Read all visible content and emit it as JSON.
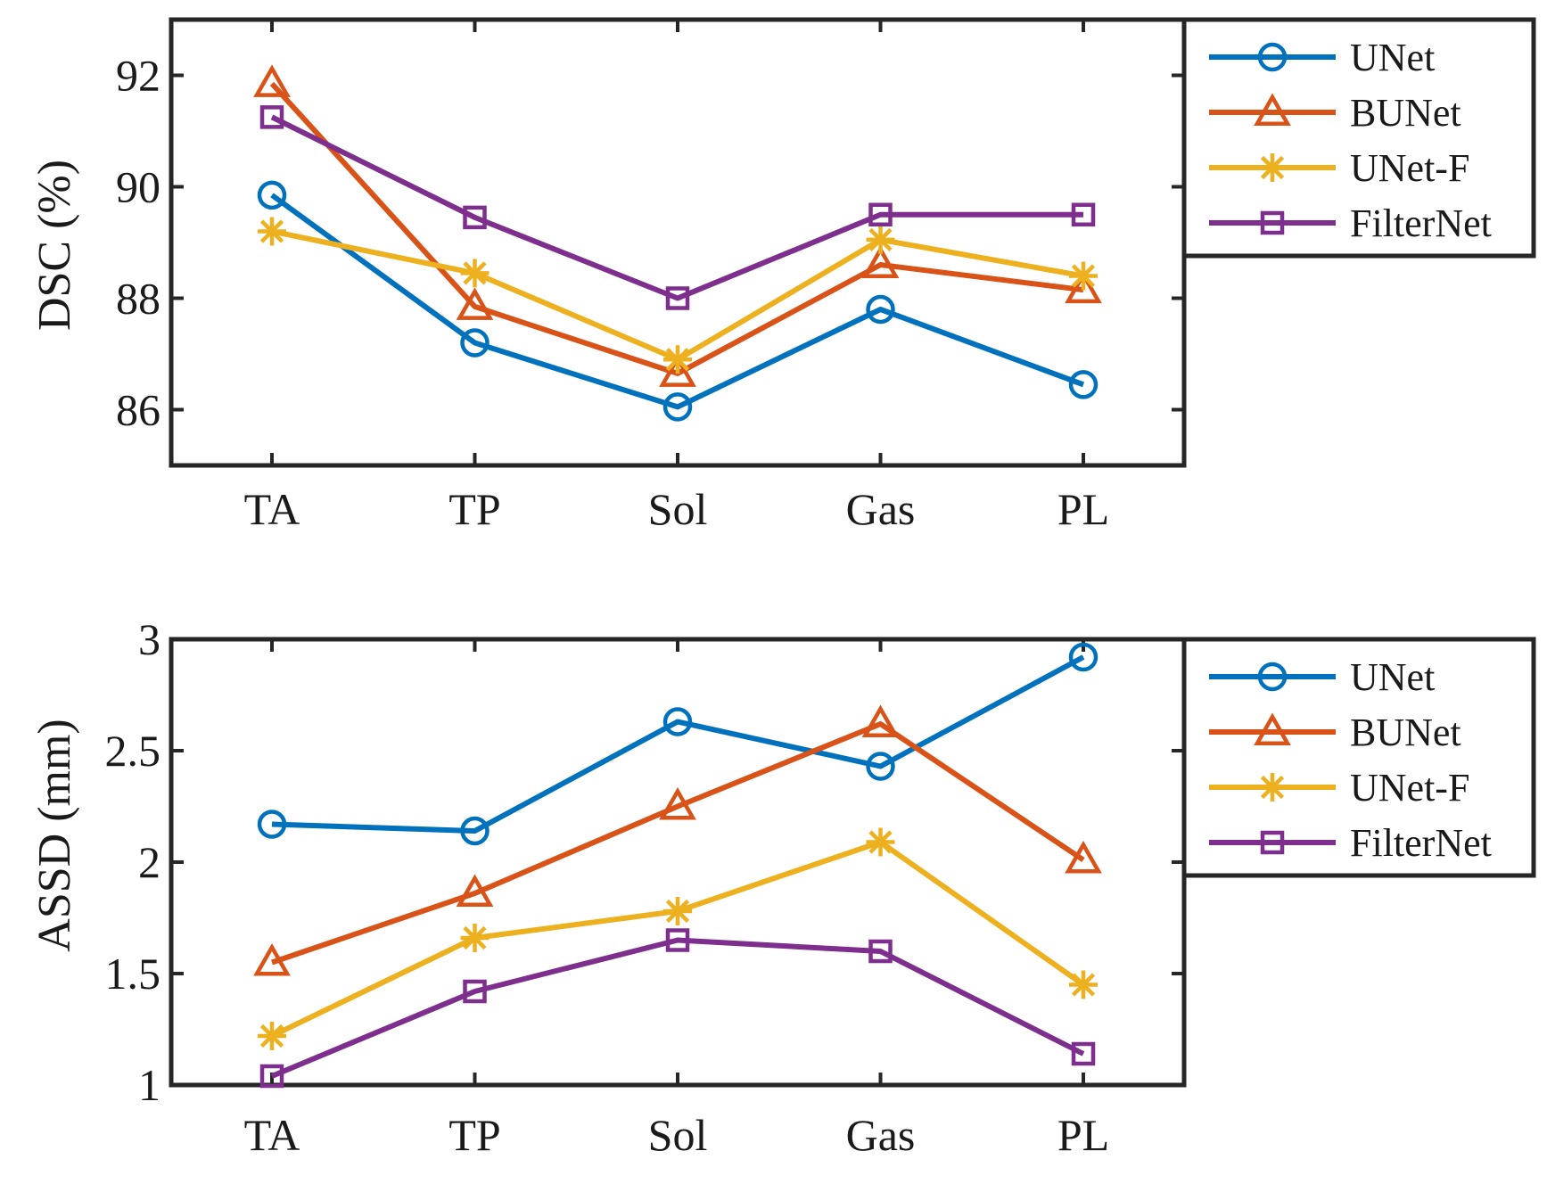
{
  "chart_data": [
    {
      "type": "line",
      "title": "",
      "xlabel": "",
      "ylabel": "DSC (%)",
      "categories": [
        "TA",
        "TP",
        "Sol",
        "Gas",
        "PL"
      ],
      "ylim": [
        85,
        93
      ],
      "yticks": [
        86,
        88,
        90,
        92
      ],
      "grid": false,
      "legend_position": "right",
      "series": [
        {
          "name": "UNet",
          "color": "#0072BD",
          "marker": "circle",
          "values": [
            89.85,
            87.2,
            86.05,
            87.8,
            86.45
          ]
        },
        {
          "name": "BUNet",
          "color": "#D95319",
          "marker": "triangle",
          "values": [
            91.85,
            87.85,
            86.65,
            88.6,
            88.15
          ]
        },
        {
          "name": "UNet-F",
          "color": "#EDB120",
          "marker": "star",
          "values": [
            89.2,
            88.45,
            86.9,
            89.05,
            88.4
          ]
        },
        {
          "name": "FilterNet",
          "color": "#7E2F8E",
          "marker": "square",
          "values": [
            91.25,
            89.45,
            88.0,
            89.5,
            89.5
          ]
        }
      ]
    },
    {
      "type": "line",
      "title": "",
      "xlabel": "",
      "ylabel": "ASSD (mm)",
      "categories": [
        "TA",
        "TP",
        "Sol",
        "Gas",
        "PL"
      ],
      "ylim": [
        1,
        3
      ],
      "yticks": [
        1,
        1.5,
        2,
        2.5,
        3
      ],
      "grid": false,
      "legend_position": "right",
      "series": [
        {
          "name": "UNet",
          "color": "#0072BD",
          "marker": "circle",
          "values": [
            2.17,
            2.14,
            2.63,
            2.43,
            2.92
          ]
        },
        {
          "name": "BUNet",
          "color": "#D95319",
          "marker": "triangle",
          "values": [
            1.55,
            1.86,
            2.25,
            2.62,
            2.01
          ]
        },
        {
          "name": "UNet-F",
          "color": "#EDB120",
          "marker": "star",
          "values": [
            1.22,
            1.66,
            1.78,
            2.09,
            1.45
          ]
        },
        {
          "name": "FilterNet",
          "color": "#7E2F8E",
          "marker": "square",
          "values": [
            1.04,
            1.42,
            1.65,
            1.6,
            1.14
          ]
        }
      ]
    }
  ]
}
